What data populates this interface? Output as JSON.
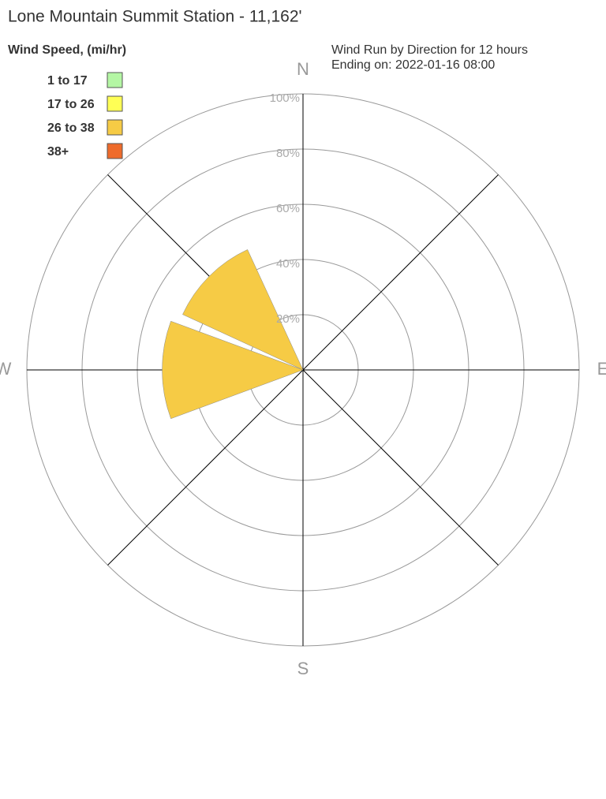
{
  "chart_data": {
    "type": "windrose",
    "title": "Lone Mountain Summit Station - 11,162'",
    "subtitle": [
      "Wind Run by Direction for 12 hours",
      "Ending on: 2022-01-16 08:00"
    ],
    "legend_title": "Wind Speed, (mi/hr)",
    "categories": [
      "N",
      null,
      "E",
      null,
      "S",
      null,
      "W",
      null
    ],
    "series": [
      {
        "name": "1 to 17",
        "color": "#b4f6a4",
        "values": [
          0,
          0,
          0,
          0,
          0,
          0,
          0,
          0
        ]
      },
      {
        "name": "17 to 26",
        "color": "#ffff55",
        "values": [
          0,
          0,
          0,
          0,
          0,
          0,
          0,
          0
        ]
      },
      {
        "name": "26 to 38",
        "color": "#f6cb45",
        "values": [
          0,
          0,
          0,
          0,
          0,
          0,
          51,
          48
        ]
      },
      {
        "name": "38+",
        "color": "#ee6b2b",
        "values": [
          0,
          0,
          0,
          0,
          0,
          0,
          0,
          0
        ]
      }
    ],
    "ylim": [
      0,
      100
    ],
    "yticks": [
      {
        "value": 20,
        "label": "20%"
      },
      {
        "value": 40,
        "label": "40%"
      },
      {
        "value": 60,
        "label": "60%"
      },
      {
        "value": 80,
        "label": "80%"
      },
      {
        "value": 100,
        "label": "100%"
      }
    ],
    "grid": true
  }
}
